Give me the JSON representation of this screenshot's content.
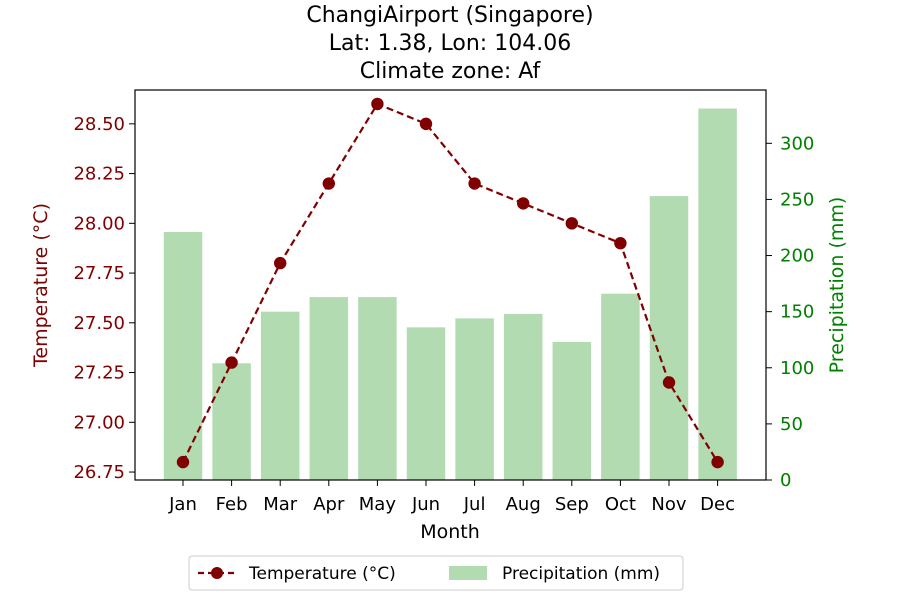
{
  "chart_data": {
    "type": "bar",
    "title_lines": [
      "ChangiAirport (Singapore)",
      "Lat: 1.38, Lon: 104.06",
      "Climate zone: Af"
    ],
    "categories": [
      "Jan",
      "Feb",
      "Mar",
      "Apr",
      "May",
      "Jun",
      "Jul",
      "Aug",
      "Sep",
      "Oct",
      "Nov",
      "Dec"
    ],
    "xlabel": "Month",
    "series": [
      {
        "name": "Temperature (°C)",
        "type": "line",
        "axis": "left",
        "color": "#800000",
        "values": [
          26.8,
          27.3,
          27.8,
          28.2,
          28.6,
          28.5,
          28.2,
          28.1,
          28.0,
          27.9,
          27.2,
          26.8
        ]
      },
      {
        "name": "Precipitation (mm)",
        "type": "bar",
        "axis": "right",
        "color": "#b2dbb2",
        "values": [
          221,
          104,
          150,
          163,
          163,
          136,
          144,
          148,
          123,
          166,
          253,
          331
        ]
      }
    ],
    "y_left": {
      "label": "Temperature (°C)",
      "color": "#800000",
      "ticks": [
        26.75,
        27.0,
        27.25,
        27.5,
        27.75,
        28.0,
        28.25,
        28.5
      ],
      "tick_labels": [
        "26.75",
        "27.00",
        "27.25",
        "27.50",
        "27.75",
        "28.00",
        "28.25",
        "28.50"
      ],
      "ylim": [
        26.71,
        28.67
      ]
    },
    "y_right": {
      "label": "Precipitation (mm)",
      "color": "#008000",
      "ticks": [
        0,
        50,
        100,
        150,
        200,
        250,
        300
      ],
      "tick_labels": [
        "0",
        "50",
        "100",
        "150",
        "200",
        "250",
        "300"
      ],
      "ylim": [
        0,
        347.5
      ]
    },
    "grid": false,
    "legend": {
      "placement": "bottom-center",
      "entries": [
        "Temperature (°C)",
        "Precipitation (mm)"
      ]
    }
  }
}
